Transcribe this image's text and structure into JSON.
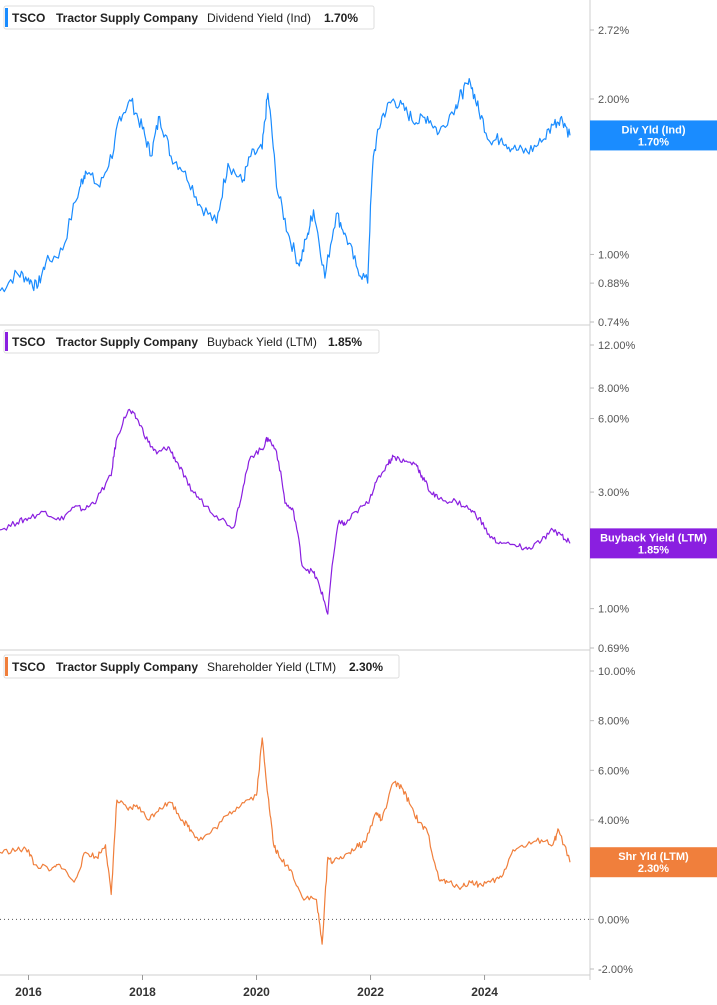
{
  "chart_data": [
    {
      "type": "line",
      "scale": "log",
      "ticker": "TSCO",
      "company": "Tractor Supply Company",
      "metric": "Dividend Yield (Ind)",
      "current": "1.70%",
      "badge_label": "Div Yld (Ind)",
      "badge_value": "1.70%",
      "color": "#1a8cff",
      "ylim": [
        0.74,
        3.2
      ],
      "ticks": [
        {
          "v": 2.72,
          "label": "2.72%"
        },
        {
          "v": 2.0,
          "label": "2.00%"
        },
        {
          "v": 1.0,
          "label": "1.00%"
        },
        {
          "v": 0.88,
          "label": "0.88%"
        },
        {
          "v": 0.74,
          "label": "0.74%"
        }
      ],
      "x": [
        2015.5,
        2015.8,
        2016.0,
        2016.15,
        2016.3,
        2016.6,
        2016.9,
        2017.0,
        2017.25,
        2017.5,
        2017.6,
        2017.8,
        2018.0,
        2018.15,
        2018.3,
        2018.5,
        2018.75,
        2019.0,
        2019.3,
        2019.5,
        2019.75,
        2019.9,
        2020.1,
        2020.2,
        2020.35,
        2020.55,
        2020.75,
        2020.9,
        2021.0,
        2021.2,
        2021.4,
        2021.55,
        2021.75,
        2021.95,
        2022.05,
        2022.2,
        2022.4,
        2022.6,
        2022.8,
        2023.0,
        2023.2,
        2023.5,
        2023.6,
        2023.75,
        2023.9,
        2024.1,
        2024.3,
        2024.5,
        2024.75,
        2025.0,
        2025.2,
        2025.35,
        2025.5
      ],
      "values": [
        0.85,
        0.92,
        0.9,
        0.86,
        0.96,
        1.02,
        1.35,
        1.45,
        1.35,
        1.6,
        1.85,
        1.98,
        1.75,
        1.55,
        1.85,
        1.55,
        1.45,
        1.25,
        1.15,
        1.5,
        1.38,
        1.55,
        1.6,
        2.05,
        1.35,
        1.1,
        0.95,
        1.1,
        1.22,
        0.9,
        1.2,
        1.1,
        0.95,
        0.88,
        1.55,
        1.85,
        2.0,
        1.9,
        1.8,
        1.85,
        1.72,
        1.95,
        2.05,
        2.15,
        1.9,
        1.65,
        1.68,
        1.6,
        1.58,
        1.65,
        1.78,
        1.85,
        1.7
      ]
    },
    {
      "type": "line",
      "scale": "log",
      "ticker": "TSCO",
      "company": "Tractor Supply Company",
      "metric": "Buyback Yield (LTM)",
      "current": "1.85%",
      "badge_label": "Buyback Yield (LTM)",
      "badge_value": "1.85%",
      "color": "#8a1fe0",
      "ylim": [
        0.69,
        12.5
      ],
      "ticks": [
        {
          "v": 12.0,
          "label": "12.00%"
        },
        {
          "v": 8.0,
          "label": "8.00%"
        },
        {
          "v": 6.0,
          "label": "6.00%"
        },
        {
          "v": 3.0,
          "label": "3.00%"
        },
        {
          "v": 1.0,
          "label": "1.00%"
        },
        {
          "v": 0.69,
          "label": "0.69%"
        }
      ],
      "x": [
        2015.5,
        2015.8,
        2016.0,
        2016.3,
        2016.55,
        2016.8,
        2017.0,
        2017.2,
        2017.45,
        2017.55,
        2017.75,
        2017.9,
        2018.1,
        2018.25,
        2018.45,
        2018.6,
        2018.8,
        2019.0,
        2019.3,
        2019.6,
        2019.75,
        2019.9,
        2020.1,
        2020.2,
        2020.35,
        2020.5,
        2020.65,
        2020.8,
        2021.0,
        2021.1,
        2021.25,
        2021.45,
        2021.55,
        2021.75,
        2021.95,
        2022.1,
        2022.3,
        2022.4,
        2022.6,
        2022.8,
        2022.9,
        2023.05,
        2023.2,
        2023.5,
        2023.75,
        2023.9,
        2024.1,
        2024.3,
        2024.6,
        2024.75,
        2025.0,
        2025.2,
        2025.35,
        2025.5
      ],
      "values": [
        2.1,
        2.25,
        2.35,
        2.5,
        2.3,
        2.6,
        2.55,
        2.8,
        3.5,
        5.0,
        6.5,
        6.0,
        4.8,
        4.3,
        4.6,
        4.0,
        3.2,
        2.8,
        2.4,
        2.15,
        3.0,
        4.2,
        4.5,
        5.0,
        4.4,
        2.7,
        2.5,
        1.5,
        1.4,
        1.25,
        0.95,
        2.3,
        2.2,
        2.5,
        2.7,
        3.3,
        3.9,
        4.2,
        4.0,
        3.9,
        3.5,
        3.0,
        2.8,
        2.75,
        2.55,
        2.35,
        1.95,
        1.85,
        1.8,
        1.75,
        1.9,
        2.1,
        2.0,
        1.85
      ]
    },
    {
      "type": "line",
      "scale": "linear",
      "ticker": "TSCO",
      "company": "Tractor Supply Company",
      "metric": "Shareholder Yield (LTM)",
      "current": "2.30%",
      "badge_label": "Shr Yld (LTM)",
      "badge_value": "2.30%",
      "color": "#f07f3c",
      "ylim": [
        -2.0,
        10.0
      ],
      "ticks": [
        {
          "v": 10.0,
          "label": "10.00%"
        },
        {
          "v": 8.0,
          "label": "8.00%"
        },
        {
          "v": 6.0,
          "label": "6.00%"
        },
        {
          "v": 4.0,
          "label": "4.00%"
        },
        {
          "v": 2.0,
          "label": "2.00%"
        },
        {
          "v": 0.0,
          "label": "0.00%"
        },
        {
          "v": -2.0,
          "label": "-2.00%"
        }
      ],
      "zero_line": 0.0,
      "x": [
        2015.5,
        2015.8,
        2016.0,
        2016.1,
        2016.4,
        2016.55,
        2016.8,
        2017.0,
        2017.2,
        2017.35,
        2017.45,
        2017.55,
        2017.75,
        2017.9,
        2018.1,
        2018.3,
        2018.5,
        2018.7,
        2018.85,
        2019.0,
        2019.2,
        2019.5,
        2019.75,
        2020.0,
        2020.1,
        2020.2,
        2020.3,
        2020.4,
        2020.6,
        2020.8,
        2021.05,
        2021.15,
        2021.25,
        2021.35,
        2021.55,
        2021.75,
        2021.9,
        2022.1,
        2022.2,
        2022.4,
        2022.55,
        2022.7,
        2022.85,
        2023.0,
        2023.2,
        2023.35,
        2023.6,
        2023.75,
        2023.9,
        2024.1,
        2024.3,
        2024.5,
        2024.75,
        2025.0,
        2025.2,
        2025.3,
        2025.5
      ],
      "values": [
        2.7,
        2.8,
        2.8,
        2.2,
        2.0,
        2.2,
        1.5,
        2.7,
        2.5,
        3.0,
        1.0,
        4.8,
        4.4,
        4.6,
        4.0,
        4.5,
        4.7,
        4.0,
        3.6,
        3.2,
        3.5,
        4.2,
        4.7,
        5.0,
        7.3,
        5.0,
        3.0,
        2.5,
        2.0,
        0.9,
        0.8,
        -1.0,
        2.5,
        2.3,
        2.6,
        2.9,
        3.1,
        4.3,
        4.0,
        5.5,
        5.3,
        4.6,
        3.9,
        3.5,
        1.6,
        1.5,
        1.3,
        1.5,
        1.4,
        1.5,
        1.7,
        2.8,
        3.0,
        3.2,
        3.0,
        3.6,
        2.3
      ]
    }
  ],
  "x_axis": {
    "xlim": [
      2015.5,
      2025.85
    ],
    "ticks": [
      {
        "v": 2016,
        "label": "2016"
      },
      {
        "v": 2018,
        "label": "2018"
      },
      {
        "v": 2020,
        "label": "2020"
      },
      {
        "v": 2022,
        "label": "2022"
      },
      {
        "v": 2024,
        "label": "2024"
      }
    ]
  }
}
